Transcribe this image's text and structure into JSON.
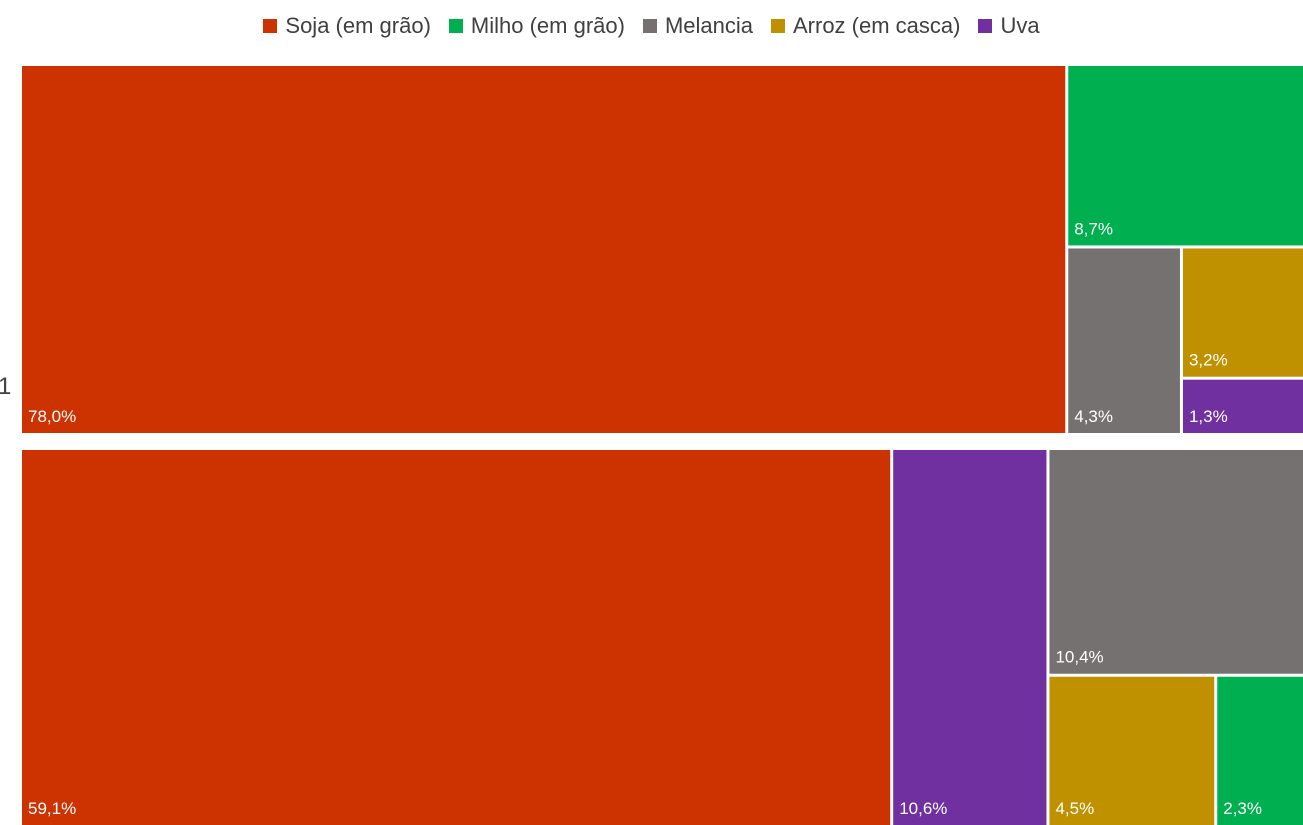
{
  "legend": {
    "items": [
      {
        "label": "Soja (em grão)",
        "color": "#CC3300"
      },
      {
        "label": "Milho (em grão)",
        "color": "#00B050"
      },
      {
        "label": "Melancia",
        "color": "#767171"
      },
      {
        "label": "Arroz (em casca)",
        "color": "#BF9000"
      },
      {
        "label": "Uva",
        "color": "#7030A0"
      }
    ]
  },
  "chart_data": {
    "type": "treemap",
    "groups": [
      {
        "label": "1",
        "cells": [
          {
            "category": "Soja (em grão)",
            "value": 78.0,
            "label": "78,0%"
          },
          {
            "category": "Milho (em grão)",
            "value": 8.7,
            "label": "8,7%"
          },
          {
            "category": "Melancia",
            "value": 4.3,
            "label": "4,3%"
          },
          {
            "category": "Arroz (em casca)",
            "value": 3.2,
            "label": "3,2%"
          },
          {
            "category": "Uva",
            "value": 1.3,
            "label": "1,3%"
          }
        ]
      },
      {
        "label": "",
        "cells": [
          {
            "category": "Soja (em grão)",
            "value": 59.1,
            "label": "59,1%"
          },
          {
            "category": "Uva",
            "value": 10.6,
            "label": "10,6%"
          },
          {
            "category": "Melancia",
            "value": 10.4,
            "label": "10,4%"
          },
          {
            "category": "Arroz (em casca)",
            "value": 4.5,
            "label": "4,5%"
          },
          {
            "category": "Milho (em grão)",
            "value": 2.3,
            "label": "2,3%"
          }
        ]
      }
    ],
    "legend_position": "top"
  }
}
